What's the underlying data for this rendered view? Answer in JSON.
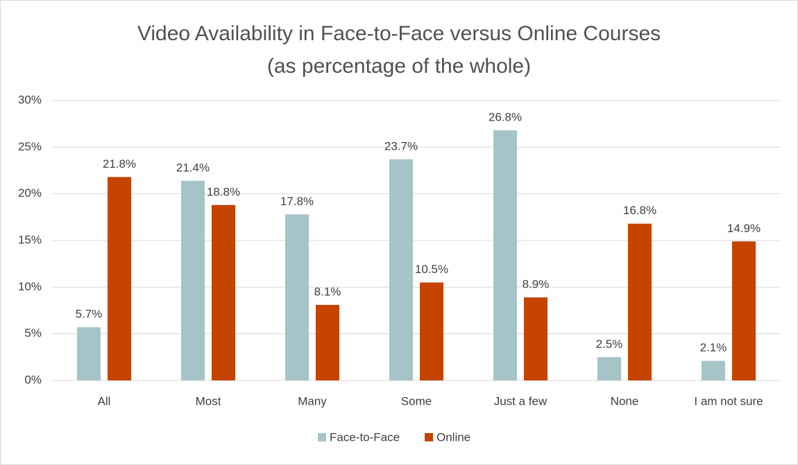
{
  "chart_data": {
    "type": "bar",
    "title": "Video Availability in Face-to-Face versus Online Courses",
    "subtitle": "(as percentage of the whole)",
    "categories": [
      "All",
      "Most",
      "Many",
      "Some",
      "Just a few",
      "None",
      "I am not sure"
    ],
    "series": [
      {
        "name": "Face-to-Face",
        "color": "#a6c4c7",
        "values": [
          5.7,
          21.4,
          17.8,
          23.7,
          26.8,
          2.5,
          2.1
        ],
        "value_labels": [
          "5.7%",
          "21.4%",
          "17.8%",
          "23.7%",
          "26.8%",
          "2.5%",
          "2.1%"
        ]
      },
      {
        "name": "Online",
        "color": "#c54400",
        "values": [
          21.8,
          18.8,
          8.1,
          10.5,
          8.9,
          16.8,
          14.9
        ],
        "value_labels": [
          "21.8%",
          "18.8%",
          "8.1%",
          "10.5%",
          "8.9%",
          "16.8%",
          "14.9%"
        ]
      }
    ],
    "ylim": [
      0,
      30
    ],
    "yticks": [
      {
        "value": 0,
        "label": "0%"
      },
      {
        "value": 5,
        "label": "5%"
      },
      {
        "value": 10,
        "label": "10%"
      },
      {
        "value": 15,
        "label": "15%"
      },
      {
        "value": 20,
        "label": "20%"
      },
      {
        "value": 25,
        "label": "25%"
      },
      {
        "value": 30,
        "label": "30%"
      }
    ],
    "grid": true,
    "legend": "bottom"
  }
}
